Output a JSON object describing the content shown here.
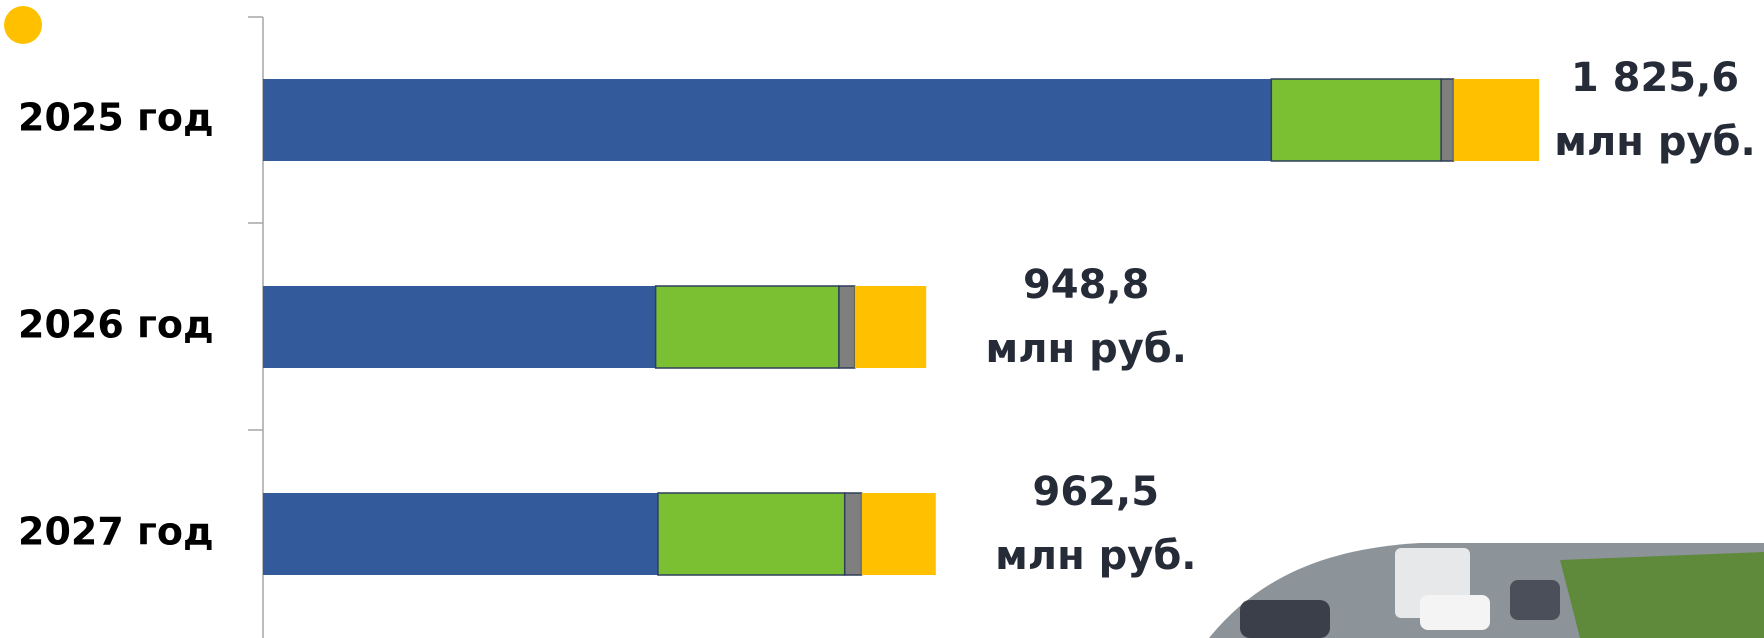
{
  "chart_data": {
    "type": "stacked-barh",
    "categories": [
      "2025 год",
      "2026 год",
      "2027 год"
    ],
    "series": [
      {
        "color": "#335a9a",
        "values": [
          1442.5,
          561.7,
          565.0
        ]
      },
      {
        "color": "#7bbf33",
        "values": [
          243.0,
          262.3,
          267.2
        ]
      },
      {
        "color": "#7f7f7f",
        "values": [
          17.7,
          22.5,
          24.1
        ]
      },
      {
        "color": "#ffc000",
        "values": [
          122.4,
          102.3,
          106.2
        ]
      }
    ],
    "totals": [
      1825.6,
      948.8,
      962.5
    ],
    "total_labels": [
      "1 825,6",
      "948,8",
      "962,5"
    ],
    "unit": "млн руб."
  }
}
